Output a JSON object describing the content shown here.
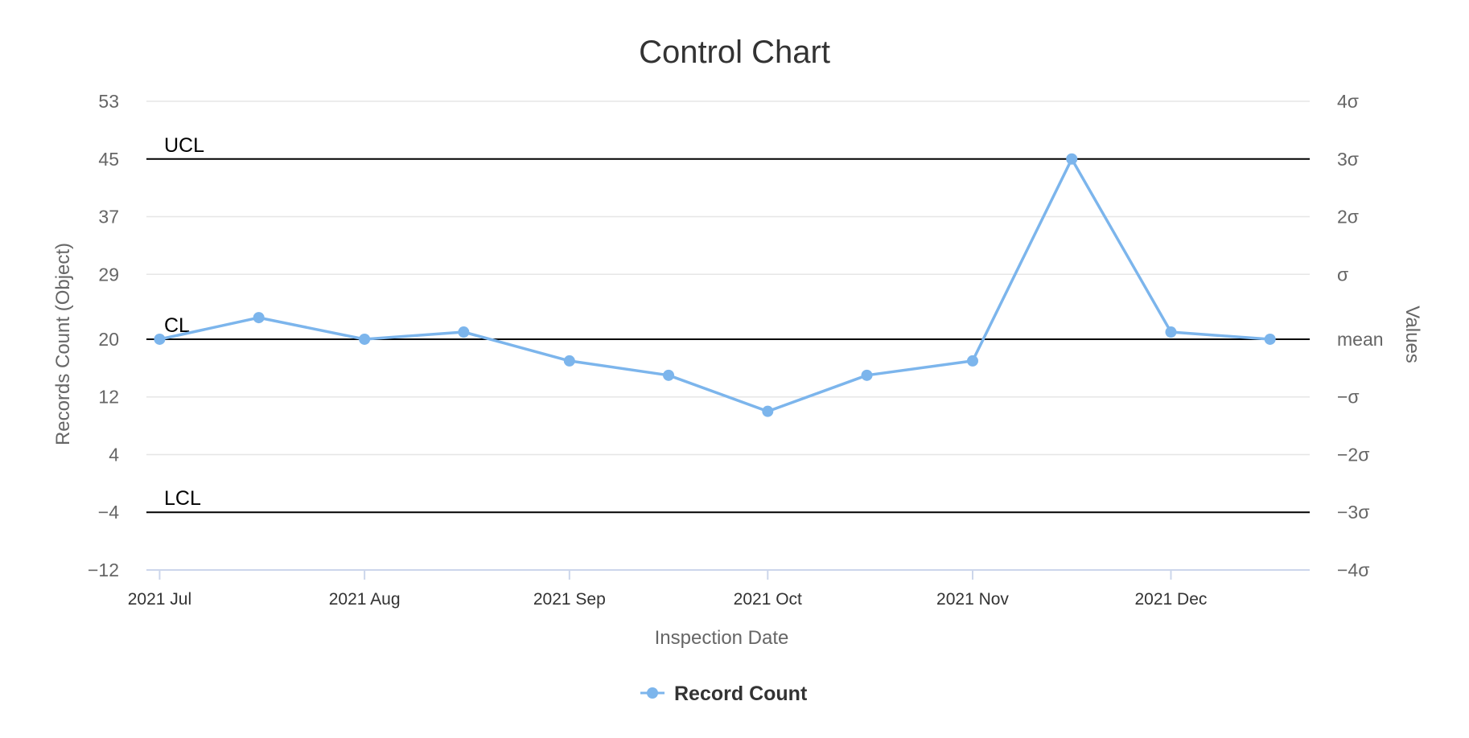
{
  "chart_data": {
    "type": "line",
    "title": "Control Chart",
    "xlabel": "Inspection Date",
    "ylabel": "Records Count (Object)",
    "ylabel_right": "Values",
    "x_tick_labels": [
      "2021 Jul",
      "2021 Aug",
      "2021 Sep",
      "2021 Oct",
      "2021 Nov",
      "2021 Dec"
    ],
    "x_tick_dates": [
      "2021-07-01",
      "2021-08-01",
      "2021-09-01",
      "2021-10-01",
      "2021-11-01",
      "2021-12-01"
    ],
    "xlim": [
      "2021-06-29",
      "2021-12-22"
    ],
    "ylim": [
      -12,
      53
    ],
    "y_ticks": [
      53,
      45,
      37,
      29,
      20,
      12,
      4,
      -4,
      -12
    ],
    "right_ticks": [
      {
        "label": "4σ",
        "value": 53
      },
      {
        "label": "3σ",
        "value": 45
      },
      {
        "label": "2σ",
        "value": 37
      },
      {
        "label": "σ",
        "value": 29
      },
      {
        "label": "mean",
        "value": 20
      },
      {
        "label": "−σ",
        "value": 12
      },
      {
        "label": "−2σ",
        "value": 4
      },
      {
        "label": "−3σ",
        "value": -4
      },
      {
        "label": "−4σ",
        "value": -12
      }
    ],
    "plot_lines": [
      {
        "label": "UCL",
        "value": 45
      },
      {
        "label": "CL",
        "value": 20
      },
      {
        "label": "LCL",
        "value": -4
      }
    ],
    "grid": true,
    "legend_position": "bottom-center",
    "series": [
      {
        "name": "Record Count",
        "color": "#7cb5ec",
        "x": [
          "2021-07-01",
          "2021-07-16",
          "2021-08-01",
          "2021-08-16",
          "2021-09-01",
          "2021-09-16",
          "2021-10-01",
          "2021-10-16",
          "2021-11-01",
          "2021-11-16",
          "2021-12-01",
          "2021-12-16"
        ],
        "y": [
          20,
          23,
          20,
          21,
          17,
          15,
          10,
          15,
          17,
          45,
          21,
          20
        ]
      }
    ]
  }
}
